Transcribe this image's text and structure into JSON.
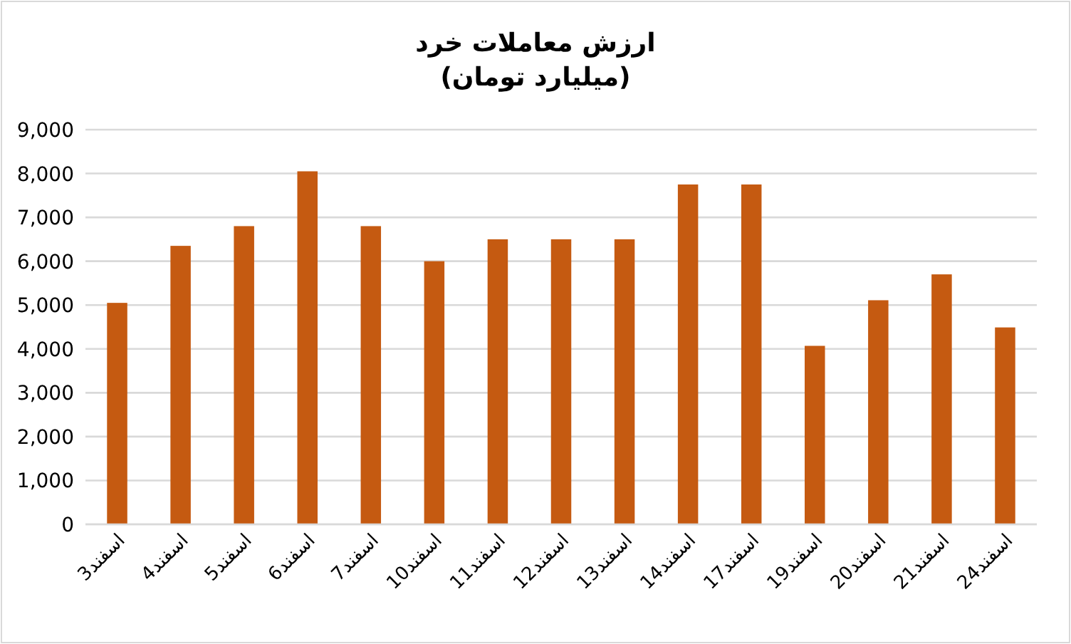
{
  "chart_data": {
    "type": "bar",
    "title": "ارزش معاملات خرد",
    "subtitle": "(میلیارد تومان)",
    "categories": [
      "3اسفند",
      "4اسفند",
      "5اسفند",
      "6اسفند",
      "7اسفند",
      "10اسفند",
      "11اسفند",
      "12اسفند",
      "13اسفند",
      "14اسفند",
      "17اسفند",
      "19اسفند",
      "20اسفند",
      "21اسفند",
      "24اسفند"
    ],
    "values": [
      5050,
      6350,
      6800,
      8050,
      6800,
      6000,
      6500,
      6500,
      6500,
      7750,
      7750,
      4070,
      5110,
      5700,
      4490
    ],
    "color": "#c55a11",
    "ylim": [
      0,
      9000
    ],
    "yticks": [
      0,
      {
        "value": 1000,
        "label": "1,000"
      },
      {
        "value": 2000,
        "label": "2,000"
      },
      {
        "value": 3000,
        "label": "3,000"
      },
      {
        "value": 4000,
        "label": "4,000"
      },
      {
        "value": 5000,
        "label": "5,000"
      },
      {
        "value": 6000,
        "label": "6,000"
      },
      {
        "value": 7000,
        "label": "7,000"
      },
      {
        "value": 8000,
        "label": "8,000"
      },
      {
        "value": 9000,
        "label": "9,000"
      }
    ],
    "grid": "y"
  }
}
